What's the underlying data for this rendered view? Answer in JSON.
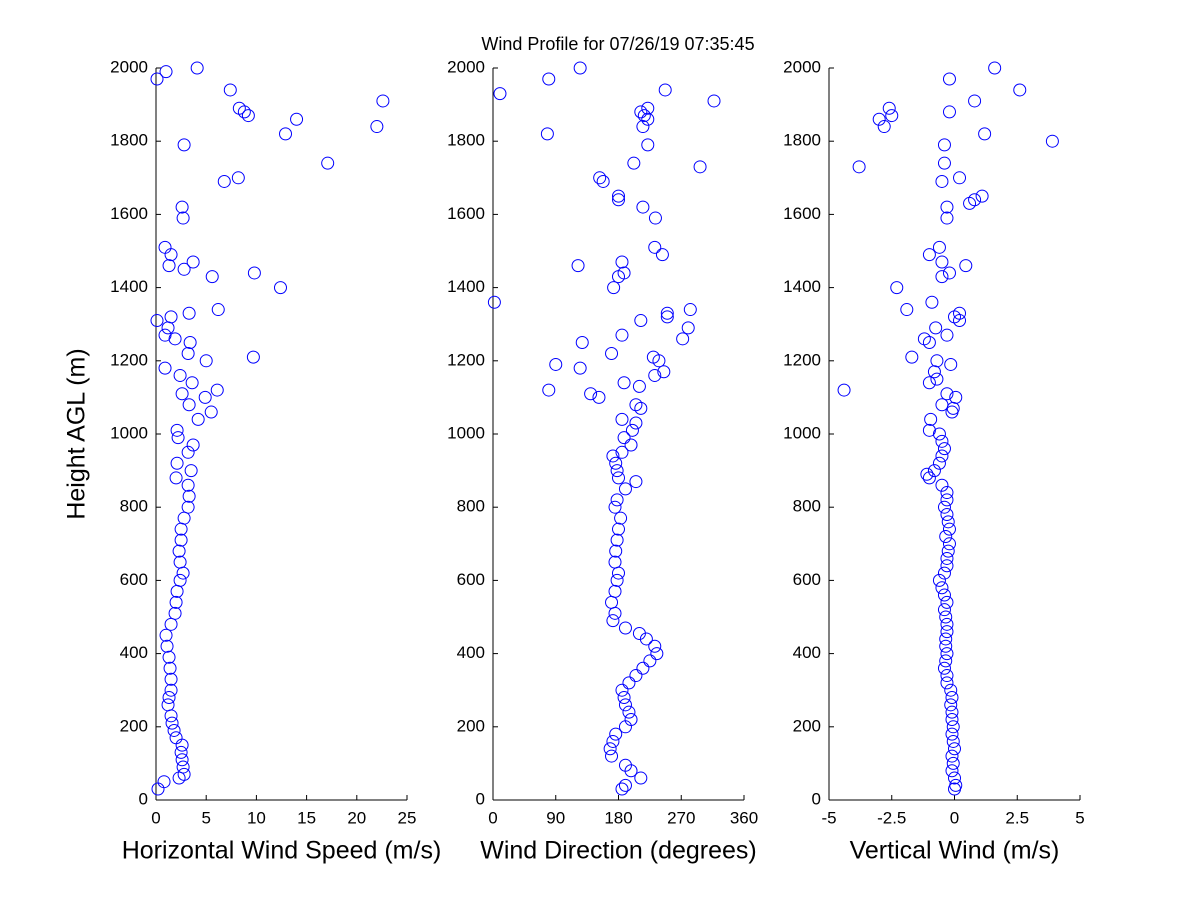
{
  "chart_data": [
    {
      "type": "scatter",
      "title": "Wind Profile for  07/26/19 07:35:45",
      "x_label": "Horizontal Wind Speed (m/s)",
      "y_label": "Height AGL (m)",
      "color": "#0000ff",
      "xlim": [
        0,
        25
      ],
      "ylim": [
        0,
        2000
      ],
      "xticks": [
        0,
        5,
        10,
        15,
        20,
        25
      ],
      "yticks": [
        0,
        200,
        400,
        600,
        800,
        1000,
        1200,
        1400,
        1600,
        1800,
        2000
      ],
      "values": [
        30,
        50,
        60,
        70,
        90,
        110,
        130,
        150,
        170,
        190,
        210,
        230,
        260,
        280,
        300,
        330,
        360,
        390,
        420,
        450,
        480,
        510,
        540,
        570,
        600,
        620,
        650,
        680,
        710,
        740,
        770,
        800,
        830,
        860,
        880,
        900,
        920,
        950,
        970,
        990,
        1010,
        1040,
        1060,
        1080,
        1100,
        1110,
        1120,
        1140,
        1160,
        1180,
        1200,
        1210,
        1220,
        1250,
        1260,
        1270,
        1290,
        1310,
        1320,
        1330,
        1340,
        1400,
        1430,
        1440,
        1450,
        1460,
        1470,
        1490,
        1510,
        1590,
        1620,
        1690,
        1700,
        1740,
        1790,
        1820,
        1840,
        1860,
        1870,
        1880,
        1890,
        1910,
        1940,
        1970,
        1990,
        2000
      ],
      "x": [
        0.2,
        0.8,
        2.3,
        2.8,
        2.7,
        2.6,
        2.5,
        2.6,
        2.0,
        1.8,
        1.6,
        1.5,
        1.2,
        1.3,
        1.5,
        1.5,
        1.4,
        1.3,
        1.1,
        1.0,
        1.5,
        1.9,
        2.0,
        2.1,
        2.4,
        2.7,
        2.4,
        2.3,
        2.5,
        2.5,
        2.8,
        3.2,
        3.3,
        3.2,
        2.0,
        3.5,
        2.1,
        3.2,
        3.7,
        2.2,
        2.1,
        4.2,
        5.5,
        3.3,
        4.9,
        2.6,
        6.1,
        3.6,
        2.4,
        0.9,
        5.0,
        9.7,
        3.2,
        3.4,
        1.9,
        0.9,
        1.2,
        0.1,
        1.5,
        3.3,
        6.2,
        12.4,
        5.6,
        9.8,
        2.8,
        1.3,
        3.7,
        1.5,
        0.9,
        2.7,
        2.6,
        6.8,
        8.2,
        17.1,
        2.8,
        12.9,
        22.0,
        14.0,
        9.2,
        8.8,
        8.3,
        22.6,
        7.4,
        0.1,
        1.0,
        4.1
      ]
    },
    {
      "type": "scatter",
      "x_label": "Wind Direction (degrees)",
      "color": "#0000ff",
      "xlim": [
        0,
        360
      ],
      "ylim": [
        0,
        2000
      ],
      "xticks": [
        0,
        90,
        180,
        270,
        360
      ],
      "yticks": [
        0,
        200,
        400,
        600,
        800,
        1000,
        1200,
        1400,
        1600,
        1800,
        2000
      ],
      "values": [
        30,
        40,
        60,
        80,
        95,
        120,
        140,
        160,
        180,
        200,
        220,
        240,
        260,
        280,
        300,
        320,
        340,
        360,
        380,
        400,
        420,
        440,
        455,
        470,
        490,
        510,
        540,
        570,
        600,
        620,
        650,
        680,
        710,
        740,
        770,
        800,
        820,
        850,
        870,
        880,
        900,
        920,
        940,
        950,
        970,
        990,
        1010,
        1030,
        1040,
        1070,
        1080,
        1100,
        1110,
        1120,
        1130,
        1140,
        1160,
        1170,
        1180,
        1190,
        1200,
        1210,
        1220,
        1250,
        1260,
        1270,
        1290,
        1310,
        1320,
        1330,
        1340,
        1360,
        1400,
        1430,
        1440,
        1460,
        1470,
        1490,
        1510,
        1590,
        1620,
        1640,
        1650,
        1690,
        1700,
        1730,
        1740,
        1790,
        1820,
        1840,
        1860,
        1870,
        1880,
        1890,
        1910,
        1930,
        1940,
        1970,
        2000
      ],
      "x": [
        185,
        190,
        212,
        198,
        190,
        170,
        168,
        172,
        176,
        190,
        198,
        195,
        190,
        188,
        185,
        195,
        205,
        215,
        225,
        235,
        232,
        220,
        210,
        190,
        172,
        175,
        170,
        175,
        178,
        180,
        175,
        176,
        178,
        180,
        183,
        175,
        178,
        190,
        205,
        180,
        178,
        176,
        172,
        185,
        198,
        188,
        200,
        205,
        185,
        212,
        205,
        152,
        140,
        80,
        210,
        188,
        232,
        245,
        125,
        90,
        238,
        230,
        170,
        128,
        272,
        185,
        280,
        212,
        250,
        250,
        283,
        2,
        173,
        180,
        188,
        122,
        185,
        243,
        232,
        233,
        215,
        180,
        180,
        158,
        153,
        297,
        202,
        222,
        78,
        215,
        222,
        217,
        212,
        222,
        317,
        10,
        247,
        80,
        125
      ]
    },
    {
      "type": "scatter",
      "x_label": "Vertical Wind (m/s)",
      "color": "#0000ff",
      "xlim": [
        -5,
        5
      ],
      "ylim": [
        0,
        2000
      ],
      "xticks": [
        -5,
        -2.5,
        0,
        2.5,
        5
      ],
      "yticks": [
        0,
        200,
        400,
        600,
        800,
        1000,
        1200,
        1400,
        1600,
        1800,
        2000
      ],
      "values": [
        30,
        40,
        60,
        80,
        100,
        120,
        140,
        160,
        180,
        200,
        220,
        240,
        260,
        280,
        300,
        320,
        340,
        360,
        380,
        400,
        420,
        440,
        460,
        480,
        500,
        520,
        540,
        560,
        580,
        600,
        620,
        640,
        660,
        680,
        700,
        720,
        740,
        760,
        780,
        800,
        820,
        840,
        860,
        880,
        890,
        900,
        920,
        940,
        960,
        980,
        1000,
        1010,
        1040,
        1060,
        1070,
        1080,
        1100,
        1110,
        1120,
        1140,
        1150,
        1170,
        1190,
        1200,
        1210,
        1250,
        1260,
        1270,
        1290,
        1310,
        1320,
        1330,
        1340,
        1360,
        1400,
        1430,
        1440,
        1460,
        1470,
        1490,
        1510,
        1590,
        1620,
        1630,
        1640,
        1650,
        1690,
        1700,
        1730,
        1740,
        1790,
        1800,
        1820,
        1840,
        1860,
        1870,
        1880,
        1890,
        1910,
        1940,
        1970,
        2000
      ],
      "x": [
        0,
        0.05,
        0,
        -0.1,
        -0.05,
        -0.1,
        0,
        -0.05,
        -0.1,
        -0.05,
        -0.1,
        -0.1,
        -0.15,
        -0.1,
        -0.15,
        -0.3,
        -0.3,
        -0.4,
        -0.35,
        -0.3,
        -0.35,
        -0.35,
        -0.3,
        -0.3,
        -0.35,
        -0.4,
        -0.3,
        -0.4,
        -0.5,
        -0.6,
        -0.4,
        -0.3,
        -0.3,
        -0.25,
        -0.2,
        -0.35,
        -0.2,
        -0.25,
        -0.3,
        -0.4,
        -0.3,
        -0.3,
        -0.5,
        -1.0,
        -1.1,
        -0.8,
        -0.6,
        -0.5,
        -0.4,
        -0.5,
        -0.6,
        -1.0,
        -0.95,
        -0.1,
        -0.05,
        -0.5,
        0.05,
        -0.3,
        -4.4,
        -1.0,
        -0.7,
        -0.8,
        -0.15,
        -0.7,
        -1.7,
        -1.0,
        -1.2,
        -0.3,
        -0.75,
        0.2,
        0,
        0.2,
        -1.9,
        -0.9,
        -2.3,
        -0.5,
        -0.2,
        0.45,
        -0.5,
        -1.0,
        -0.6,
        -0.3,
        -0.3,
        0.6,
        0.8,
        1.1,
        -0.5,
        0.2,
        -3.8,
        -0.4,
        -0.4,
        3.9,
        1.2,
        -2.8,
        -3.0,
        -2.5,
        -0.2,
        -2.6,
        0.8,
        2.6,
        -0.2,
        1.6
      ]
    }
  ]
}
